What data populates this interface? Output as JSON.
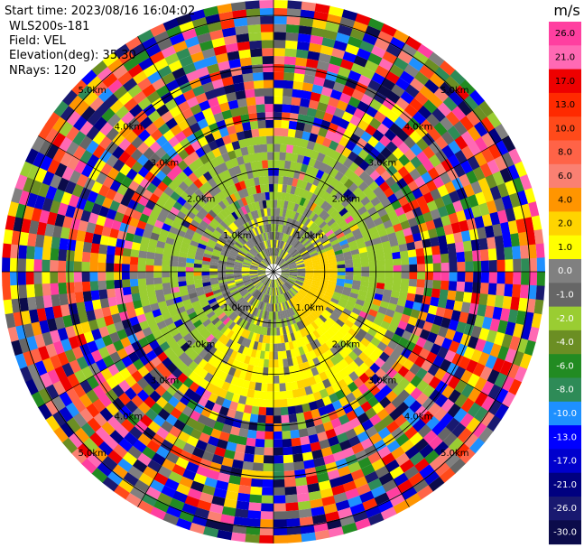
{
  "info": {
    "start_time": "Start time: 2023/08/16 16:04:02",
    "instrument": "WLS200s-181",
    "field": "Field: VEL",
    "elevation": "Elevation(deg): 35.30",
    "nrays": "NRays: 120"
  },
  "chart_data": {
    "type": "ppi",
    "field": "VEL",
    "units": "m/s",
    "nrays": 120,
    "elevation_deg": 35.3,
    "range_rings_km": [
      1.0,
      2.0,
      3.0,
      4.0,
      5.0
    ],
    "ring_labels": [
      "1.0km",
      "2.0km",
      "3.0km",
      "4.0km",
      "5.0km"
    ],
    "max_range_km": 5.3,
    "colorbar": {
      "label": "m/s",
      "ticks": [
        "26.0",
        "21.0",
        "17.0",
        "13.0",
        "10.0",
        "8.0",
        "6.0",
        "4.0",
        "2.0",
        "1.0",
        "0.0",
        "-1.0",
        "-2.0",
        "-4.0",
        "-6.0",
        "-8.0",
        "-10.0",
        "-13.0",
        "-17.0",
        "-21.0",
        "-26.0",
        "-30.0"
      ],
      "colors": [
        "#ff3fa0",
        "#ff69b4",
        "#ee0000",
        "#ff2a00",
        "#ff4a1a",
        "#ff6347",
        "#fa8072",
        "#ff9500",
        "#ffd400",
        "#ffff00",
        "#808080",
        "#666666",
        "#9acd32",
        "#6b8e23",
        "#228b22",
        "#2e8b57",
        "#1e90ff",
        "#0000ff",
        "#0000cd",
        "#000080",
        "#191970",
        "#0b0b4a"
      ]
    },
    "inner_region_km": 1.2,
    "mid_region_km": 2.5
  }
}
